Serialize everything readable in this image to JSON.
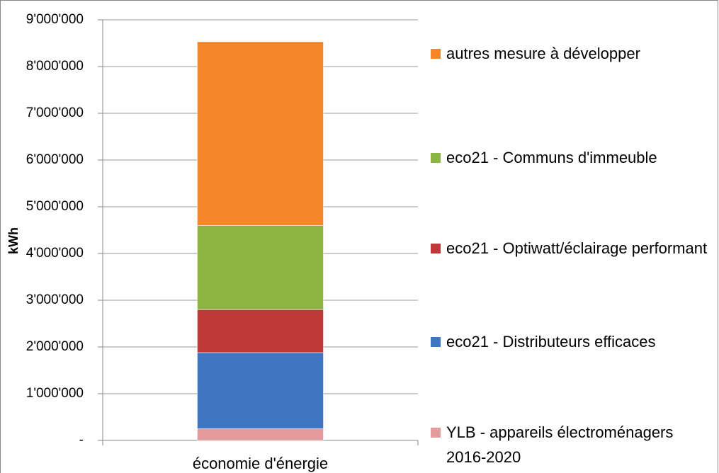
{
  "chart_data": {
    "type": "stacked_bar",
    "y_label": "kWh",
    "categories": [
      "économie d'énergie"
    ],
    "series": [
      {
        "name": "YLB - appareils électroménagers 2016-2020",
        "color": "#e39a9a",
        "values": [
          250000
        ]
      },
      {
        "name": "eco21 - Distributeurs efficaces",
        "color": "#3f76c4",
        "values": [
          1630000
        ]
      },
      {
        "name": "eco21 - Optiwatt/éclairage performant",
        "color": "#c0393a",
        "values": [
          920000
        ]
      },
      {
        "name": "eco21 - Communs d'immeuble",
        "color": "#8cb443",
        "values": [
          1800000
        ]
      },
      {
        "name": "autres mesure à développer",
        "color": "#f5862a",
        "values": [
          3930000
        ]
      }
    ],
    "ylim": [
      0,
      9000000
    ],
    "yticks": [
      {
        "value": 0,
        "label": "-"
      },
      {
        "value": 1000000,
        "label": "1'000'000"
      },
      {
        "value": 2000000,
        "label": "2'000'000"
      },
      {
        "value": 3000000,
        "label": "3'000'000"
      },
      {
        "value": 4000000,
        "label": "4'000'000"
      },
      {
        "value": 5000000,
        "label": "5'000'000"
      },
      {
        "value": 6000000,
        "label": "6'000'000"
      },
      {
        "value": 7000000,
        "label": "7'000'000"
      },
      {
        "value": 8000000,
        "label": "8'000'000"
      },
      {
        "value": 9000000,
        "label": "9'000'000"
      }
    ],
    "grid": true,
    "legend": "right"
  }
}
